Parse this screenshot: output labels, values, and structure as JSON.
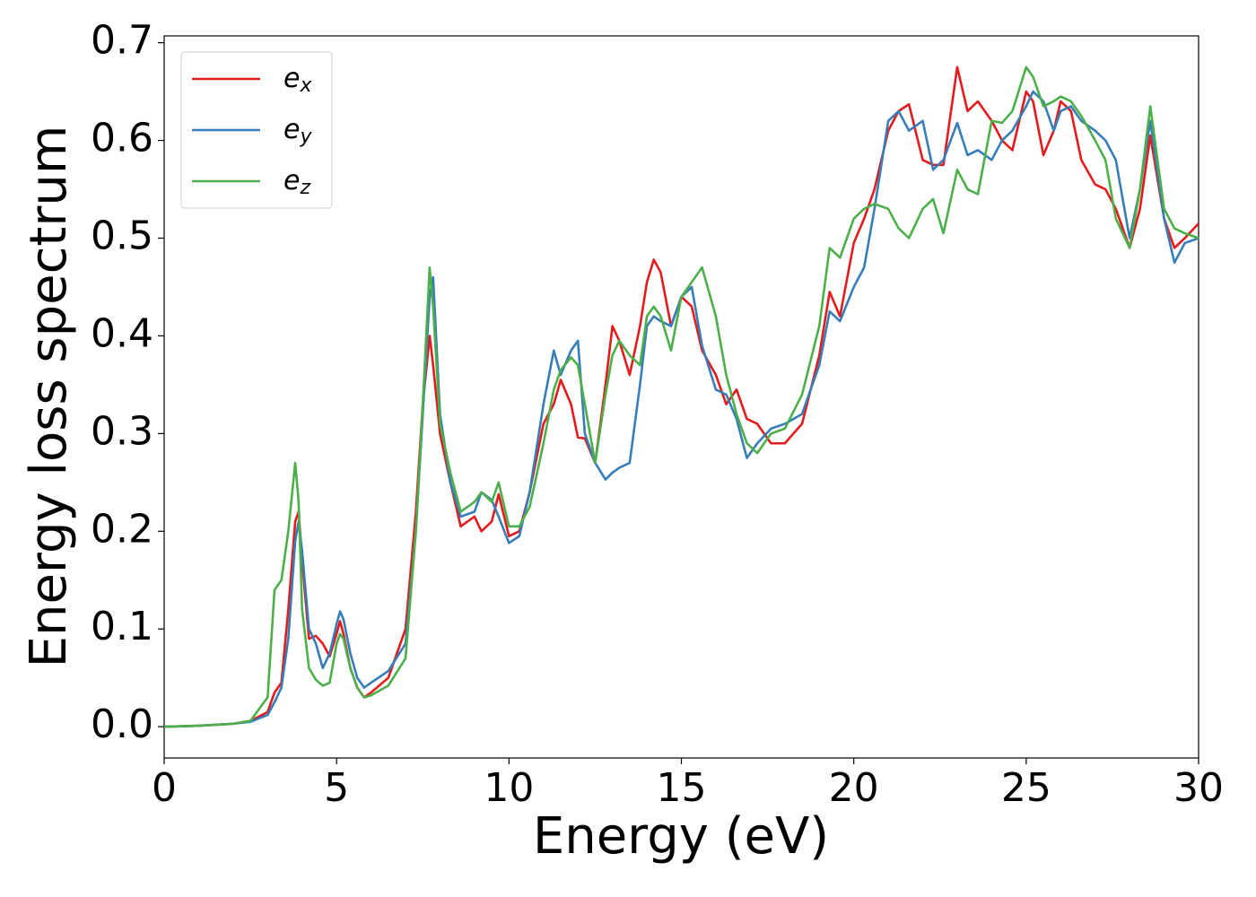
{
  "chart_data": {
    "type": "line",
    "xlabel": "Energy (eV)",
    "ylabel": "Energy loss spectrum",
    "x": [
      0,
      1,
      2,
      2.5,
      3,
      3.2,
      3.4,
      3.6,
      3.8,
      3.9,
      4.0,
      4.2,
      4.4,
      4.6,
      4.8,
      5.0,
      5.1,
      5.2,
      5.4,
      5.6,
      5.8,
      6.0,
      6.5,
      7.0,
      7.3,
      7.5,
      7.7,
      7.8,
      8.0,
      8.3,
      8.6,
      9.0,
      9.2,
      9.5,
      9.7,
      10.0,
      10.3,
      10.6,
      11.0,
      11.3,
      11.5,
      11.8,
      12.0,
      12.2,
      12.5,
      12.8,
      13.0,
      13.2,
      13.5,
      13.8,
      14.0,
      14.2,
      14.4,
      14.7,
      15.0,
      15.3,
      15.6,
      16.0,
      16.3,
      16.6,
      16.9,
      17.2,
      17.6,
      18.0,
      18.5,
      19.0,
      19.3,
      19.6,
      20.0,
      20.3,
      20.6,
      21.0,
      21.3,
      21.6,
      22.0,
      22.3,
      22.6,
      23.0,
      23.3,
      23.6,
      24.0,
      24.3,
      24.6,
      25.0,
      25.2,
      25.5,
      25.8,
      26.0,
      26.3,
      26.6,
      27.0,
      27.3,
      27.6,
      28.0,
      28.3,
      28.6,
      29.0,
      29.3,
      29.6,
      30.0
    ],
    "series": [
      {
        "name": "e_x",
        "color": "#e41a1c",
        "values": [
          0,
          0.001,
          0.003,
          0.006,
          0.015,
          0.035,
          0.045,
          0.12,
          0.21,
          0.22,
          0.17,
          0.09,
          0.093,
          0.085,
          0.072,
          0.095,
          0.108,
          0.095,
          0.06,
          0.04,
          0.03,
          0.035,
          0.05,
          0.1,
          0.22,
          0.33,
          0.4,
          0.37,
          0.3,
          0.25,
          0.205,
          0.215,
          0.2,
          0.21,
          0.238,
          0.195,
          0.2,
          0.24,
          0.31,
          0.33,
          0.355,
          0.33,
          0.296,
          0.295,
          0.27,
          0.35,
          0.41,
          0.395,
          0.36,
          0.41,
          0.455,
          0.478,
          0.465,
          0.41,
          0.44,
          0.43,
          0.385,
          0.36,
          0.33,
          0.345,
          0.315,
          0.31,
          0.29,
          0.29,
          0.31,
          0.38,
          0.445,
          0.42,
          0.495,
          0.52,
          0.55,
          0.61,
          0.63,
          0.637,
          0.58,
          0.575,
          0.575,
          0.675,
          0.63,
          0.64,
          0.62,
          0.6,
          0.59,
          0.65,
          0.64,
          0.585,
          0.61,
          0.64,
          0.63,
          0.58,
          0.555,
          0.55,
          0.53,
          0.49,
          0.53,
          0.605,
          0.52,
          0.49,
          0.5,
          0.515
        ]
      },
      {
        "name": "e_y",
        "color": "#377eb8",
        "values": [
          0,
          0.001,
          0.003,
          0.005,
          0.012,
          0.025,
          0.04,
          0.09,
          0.19,
          0.21,
          0.18,
          0.1,
          0.085,
          0.06,
          0.075,
          0.105,
          0.118,
          0.11,
          0.075,
          0.05,
          0.04,
          0.045,
          0.057,
          0.085,
          0.2,
          0.32,
          0.44,
          0.46,
          0.32,
          0.25,
          0.215,
          0.22,
          0.24,
          0.232,
          0.215,
          0.188,
          0.195,
          0.24,
          0.33,
          0.385,
          0.36,
          0.385,
          0.395,
          0.3,
          0.27,
          0.253,
          0.26,
          0.265,
          0.27,
          0.35,
          0.41,
          0.42,
          0.415,
          0.41,
          0.44,
          0.45,
          0.39,
          0.345,
          0.34,
          0.315,
          0.275,
          0.29,
          0.305,
          0.31,
          0.32,
          0.37,
          0.425,
          0.415,
          0.45,
          0.47,
          0.53,
          0.62,
          0.63,
          0.61,
          0.62,
          0.57,
          0.58,
          0.618,
          0.585,
          0.59,
          0.58,
          0.6,
          0.61,
          0.635,
          0.65,
          0.64,
          0.61,
          0.63,
          0.635,
          0.62,
          0.61,
          0.6,
          0.58,
          0.5,
          0.55,
          0.62,
          0.52,
          0.475,
          0.495,
          0.5
        ]
      },
      {
        "name": "e_z",
        "color": "#4daf4a",
        "values": [
          0,
          0.001,
          0.003,
          0.006,
          0.03,
          0.14,
          0.15,
          0.2,
          0.27,
          0.23,
          0.12,
          0.06,
          0.048,
          0.042,
          0.045,
          0.085,
          0.095,
          0.09,
          0.06,
          0.04,
          0.03,
          0.032,
          0.042,
          0.07,
          0.2,
          0.33,
          0.47,
          0.43,
          0.31,
          0.26,
          0.22,
          0.23,
          0.24,
          0.23,
          0.25,
          0.205,
          0.205,
          0.225,
          0.29,
          0.345,
          0.365,
          0.378,
          0.37,
          0.33,
          0.27,
          0.34,
          0.38,
          0.395,
          0.38,
          0.37,
          0.42,
          0.43,
          0.42,
          0.385,
          0.44,
          0.455,
          0.47,
          0.42,
          0.36,
          0.32,
          0.29,
          0.28,
          0.3,
          0.305,
          0.34,
          0.41,
          0.49,
          0.48,
          0.52,
          0.53,
          0.535,
          0.53,
          0.51,
          0.5,
          0.53,
          0.54,
          0.505,
          0.57,
          0.55,
          0.545,
          0.62,
          0.618,
          0.63,
          0.675,
          0.665,
          0.635,
          0.64,
          0.645,
          0.64,
          0.625,
          0.6,
          0.58,
          0.52,
          0.49,
          0.55,
          0.635,
          0.53,
          0.51,
          0.505,
          0.5
        ]
      }
    ],
    "xlim": [
      0,
      30
    ],
    "xticks": [
      0,
      5,
      10,
      15,
      20,
      25,
      30
    ],
    "ylim": [
      -0.032,
      0.707
    ],
    "yticks": [
      {
        "value": 0,
        "label": "0.0"
      },
      0.1,
      0.2,
      0.3,
      0.4,
      0.5,
      0.6,
      0.7
    ],
    "grid": false,
    "legend": "upper left"
  }
}
